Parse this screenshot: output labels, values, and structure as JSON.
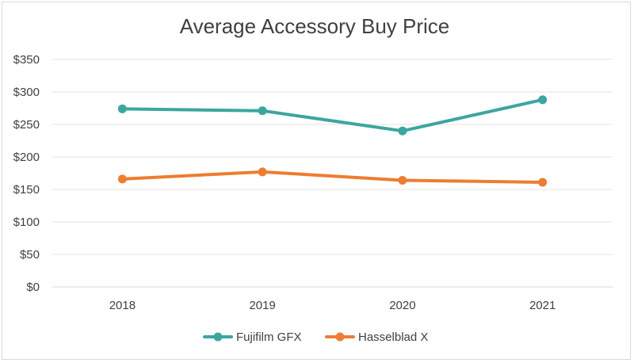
{
  "chart_data": {
    "type": "line",
    "title": "Average Accessory Buy Price",
    "xlabel": "",
    "ylabel": "",
    "categories": [
      "2018",
      "2019",
      "2020",
      "2021"
    ],
    "ylim": [
      0,
      350
    ],
    "y_ticks": [
      "$0",
      "$50",
      "$100",
      "$150",
      "$200",
      "$250",
      "$300",
      "$350"
    ],
    "y_tick_values": [
      0,
      50,
      100,
      150,
      200,
      250,
      300,
      350
    ],
    "grid": true,
    "legend_position": "bottom",
    "series": [
      {
        "name": "Fujifilm GFX",
        "values": [
          274,
          271,
          240,
          288
        ],
        "color": "#3ba6a0"
      },
      {
        "name": "Hasselblad X",
        "values": [
          166,
          177,
          164,
          161
        ],
        "color": "#ed7d31"
      }
    ]
  }
}
